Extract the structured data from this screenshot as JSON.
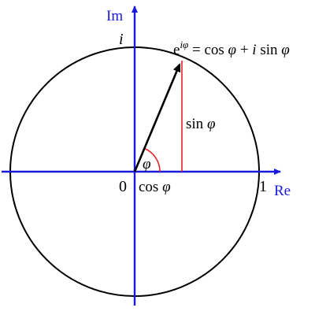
{
  "labels": {
    "im": "Im",
    "re": "Re",
    "i": "i",
    "zero": "0",
    "one": "1",
    "phi": "φ",
    "cos_part": "cos ",
    "sin_part": "sin ",
    "euler_e": "e",
    "euler_exp": "iφ",
    "euler_eq": " = cos ",
    "euler_plus": " + ",
    "euler_i": "i",
    "euler_sin": " sin "
  },
  "colors": {
    "axis": "#1a1adb",
    "circle": "#000000",
    "vector": "#000000",
    "sine": "#e8202a",
    "angle_arc": "#e8202a",
    "text": "#000000"
  },
  "icons": {
    "axis_ends": "arrowhead",
    "vector_end": "arrowhead"
  }
}
